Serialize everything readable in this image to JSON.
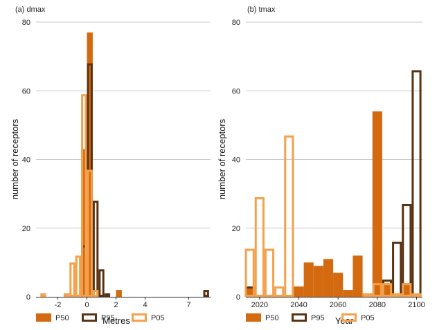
{
  "colors": {
    "P50": "#d46a10",
    "P95": "#5a3212",
    "P05": "#f5a04a",
    "grid": "#c9c9c9",
    "axis": "#222222"
  },
  "chart_data": [
    {
      "type": "bar",
      "title": "(a) dmax",
      "xlabel": "Metres",
      "ylabel": "number of receptors",
      "xlim": [
        -3.5,
        8.5
      ],
      "ylim": [
        0,
        80
      ],
      "xticks": [
        -2,
        0,
        2,
        4,
        7
      ],
      "yticks": [
        0,
        20,
        40,
        60,
        80
      ],
      "grid": "horizontal",
      "legend": "bottom",
      "bin_width": 0.4,
      "series": [
        {
          "name": "P50",
          "style": "filled",
          "x": [
            -0.2,
            0.2,
            2.2
          ],
          "values": [
            43,
            77,
            2
          ]
        },
        {
          "name": "P95",
          "style": "outline",
          "x": [
            -0.2,
            0.2,
            0.6,
            1.0,
            1.4,
            8.2
          ],
          "values": [
            15,
            68,
            28,
            8,
            1,
            2
          ]
        },
        {
          "name": "P05",
          "style": "outline",
          "x": [
            -3.0,
            -1.4,
            -1.0,
            -0.6,
            -0.2,
            0.2,
            0.6
          ],
          "values": [
            1,
            1,
            10,
            12,
            59,
            37,
            2
          ]
        }
      ]
    },
    {
      "type": "bar",
      "title": "(b) tmax",
      "xlabel": "Year",
      "ylabel": "number of receptors",
      "xlim": [
        2013,
        2103
      ],
      "ylim": [
        0,
        80
      ],
      "xticks": [
        2020,
        2040,
        2060,
        2080,
        2100
      ],
      "yticks": [
        0,
        20,
        40,
        60,
        80
      ],
      "grid": "horizontal",
      "legend": "bottom",
      "bin_width": 5,
      "series": [
        {
          "name": "P50",
          "style": "filled",
          "x": [
            2015,
            2040,
            2045,
            2050,
            2055,
            2060,
            2065,
            2070,
            2080,
            2085,
            2090,
            2095
          ],
          "values": [
            3,
            3,
            10,
            9,
            11,
            7,
            2,
            12,
            54,
            4,
            1,
            4
          ]
        },
        {
          "name": "P95",
          "style": "outline",
          "x": [
            2015,
            2085,
            2090,
            2095,
            2100
          ],
          "values": [
            3,
            5,
            16,
            27,
            66
          ]
        },
        {
          "name": "P05",
          "style": "outline",
          "x": [
            2015,
            2020,
            2025,
            2030,
            2035,
            2075,
            2080,
            2085,
            2090,
            2095,
            2100
          ],
          "values": [
            14,
            29,
            14,
            3,
            47,
            1,
            4,
            4,
            1,
            4,
            1
          ]
        }
      ]
    }
  ]
}
